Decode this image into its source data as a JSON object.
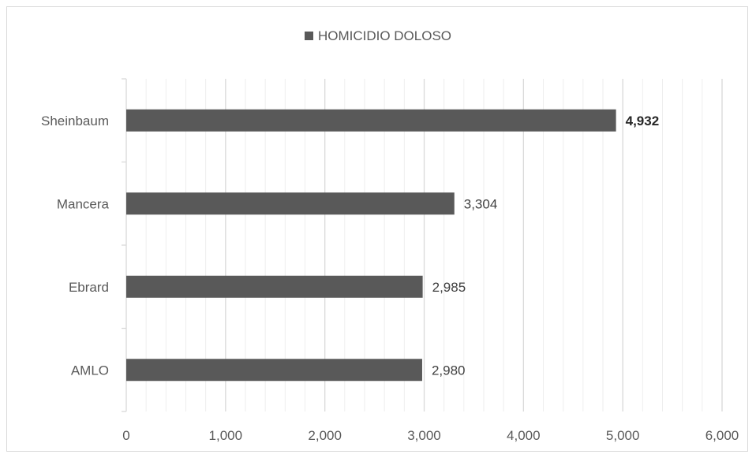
{
  "chart_data": {
    "type": "bar",
    "orientation": "horizontal",
    "categories": [
      "Sheinbaum",
      "Mancera",
      "Ebrard",
      "AMLO"
    ],
    "series": [
      {
        "name": "HOMICIDIO DOLOSO",
        "values": [
          4932,
          3304,
          2985,
          2980
        ],
        "color": "#595959"
      }
    ],
    "data_labels": [
      "4,932",
      "3,304",
      "2,985",
      "2,980"
    ],
    "bold_label_index": 0,
    "x_ticks": [
      0,
      1000,
      2000,
      3000,
      4000,
      5000,
      6000
    ],
    "x_tick_labels": [
      "0",
      "1,000",
      "2,000",
      "3,000",
      "4,000",
      "5,000",
      "6,000"
    ],
    "xlim": [
      0,
      6000
    ],
    "minor_grid_step": 200,
    "legend_position": "top",
    "grid": true
  }
}
